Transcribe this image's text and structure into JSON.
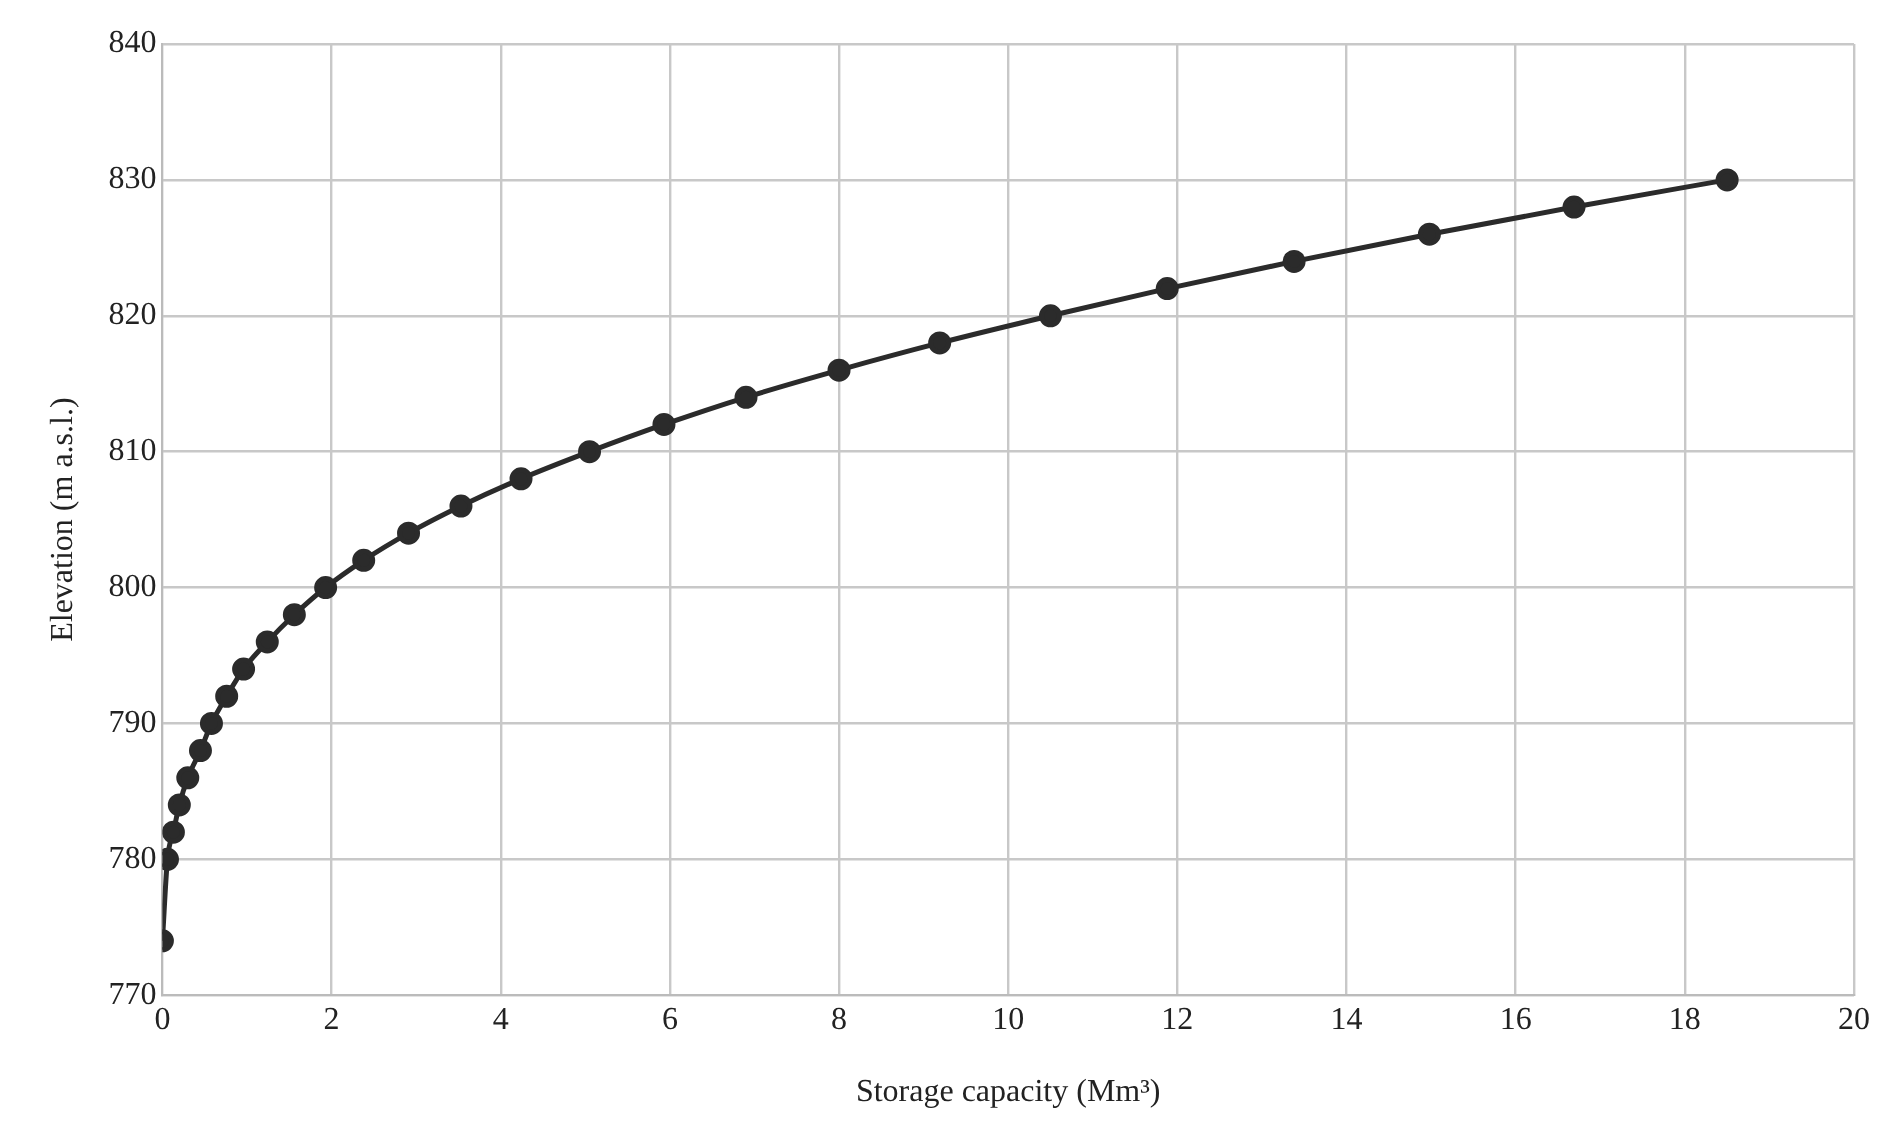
{
  "chart_data": {
    "type": "line",
    "xlabel": "Storage capacity (Mm³)",
    "ylabel": "Elevation (m a.s.l.)",
    "x": [
      0,
      0.06,
      0.13,
      0.2,
      0.3,
      0.45,
      0.58,
      0.76,
      0.96,
      1.24,
      1.56,
      1.93,
      2.38,
      2.91,
      3.53,
      4.24,
      5.05,
      5.93,
      6.9,
      8.0,
      9.19,
      10.5,
      11.88,
      13.38,
      14.98,
      16.69,
      18.5
    ],
    "series": [
      {
        "color": "#2b2b2b",
        "values": [
          774,
          780,
          782,
          784,
          786,
          788,
          790,
          792,
          794,
          796,
          798,
          800,
          802,
          804,
          806,
          808,
          810,
          812,
          814,
          816,
          818,
          820,
          822,
          824,
          826,
          828,
          830
        ]
      }
    ],
    "xlim": [
      0,
      20
    ],
    "xticks": [
      0,
      2,
      4,
      6,
      8,
      10,
      12,
      14,
      16,
      18,
      20
    ],
    "ylim": [
      770,
      840
    ],
    "yticks": [
      770,
      780,
      790,
      800,
      810,
      820,
      830,
      840
    ],
    "grid": true,
    "legend": false,
    "marker": "circle",
    "line_style": "solid"
  }
}
